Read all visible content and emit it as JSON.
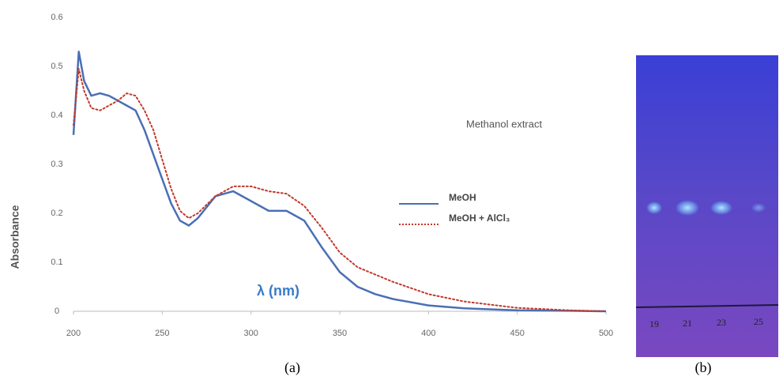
{
  "chart_data": {
    "type": "line",
    "annotation": "Methanol extract",
    "xlabel": "λ  (nm)",
    "ylabel": "Absorbance",
    "x": [
      200,
      203,
      206,
      210,
      215,
      220,
      225,
      230,
      235,
      240,
      245,
      250,
      255,
      260,
      265,
      270,
      280,
      290,
      300,
      310,
      320,
      330,
      340,
      350,
      360,
      370,
      380,
      400,
      420,
      450,
      480,
      500
    ],
    "series": [
      {
        "name": "MeOH",
        "color": "#4a6fb5",
        "line_style": "solid",
        "values": [
          0.36,
          0.53,
          0.47,
          0.44,
          0.445,
          0.44,
          0.43,
          0.42,
          0.41,
          0.37,
          0.32,
          0.27,
          0.22,
          0.185,
          0.175,
          0.19,
          0.235,
          0.245,
          0.225,
          0.205,
          0.205,
          0.185,
          0.13,
          0.08,
          0.05,
          0.035,
          0.025,
          0.012,
          0.006,
          0.002,
          0.001,
          0
        ]
      },
      {
        "name": "MeOH + AlCl₃",
        "color": "#c0392b",
        "line_style": "dotted",
        "values": [
          0.38,
          0.495,
          0.45,
          0.415,
          0.41,
          0.42,
          0.43,
          0.445,
          0.44,
          0.41,
          0.37,
          0.31,
          0.25,
          0.205,
          0.19,
          0.2,
          0.235,
          0.255,
          0.255,
          0.245,
          0.24,
          0.215,
          0.17,
          0.12,
          0.09,
          0.075,
          0.06,
          0.035,
          0.02,
          0.007,
          0.002,
          0
        ]
      }
    ],
    "xlim": [
      200,
      500
    ],
    "xticks": [
      200,
      250,
      300,
      350,
      400,
      450,
      500
    ],
    "ylim": [
      0,
      0.6
    ],
    "yticks": [
      0,
      0.1,
      0.2,
      0.3,
      0.4,
      0.5,
      0.6
    ],
    "grid": false
  },
  "panel_labels": [
    "(a)",
    "(b)"
  ],
  "tlc_plate": {
    "lane_labels": [
      "19",
      "21",
      "23",
      "25"
    ]
  }
}
